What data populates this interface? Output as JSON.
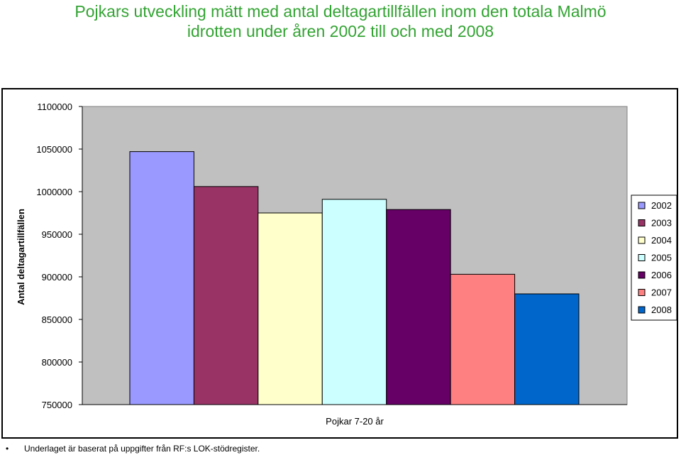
{
  "title_line1": "Pojkars utveckling mätt med antal deltagartillfällen inom den totala Malmö",
  "title_line2": "idrotten under åren 2002 till och med 2008",
  "footnote": "Underlaget är baserat på uppgifter från RF:s LOK-stödregister.",
  "colors": {
    "plot_background": "#c0c0c0",
    "title": "#33a333"
  },
  "chart_data": {
    "type": "bar",
    "categories": [
      "Pojkar 7-20 år"
    ],
    "xlabel": "Pojkar 7-20 år",
    "ylabel": "Antal deltagartillfällen",
    "ylim": [
      750000,
      1100000
    ],
    "yticks": [
      "1100000",
      "1050000",
      "1000000",
      "950000",
      "900000",
      "850000",
      "800000",
      "750000"
    ],
    "grid": false,
    "legend_position": "right",
    "series": [
      {
        "name": "2002",
        "values": [
          1047000
        ],
        "color": "#9999ff"
      },
      {
        "name": "2003",
        "values": [
          1006000
        ],
        "color": "#993366"
      },
      {
        "name": "2004",
        "values": [
          975000
        ],
        "color": "#ffffcc"
      },
      {
        "name": "2005",
        "values": [
          991000
        ],
        "color": "#ccffff"
      },
      {
        "name": "2006",
        "values": [
          979000
        ],
        "color": "#660066"
      },
      {
        "name": "2007",
        "values": [
          903000
        ],
        "color": "#ff8080"
      },
      {
        "name": "2008",
        "values": [
          880000
        ],
        "color": "#0066cc"
      }
    ]
  }
}
